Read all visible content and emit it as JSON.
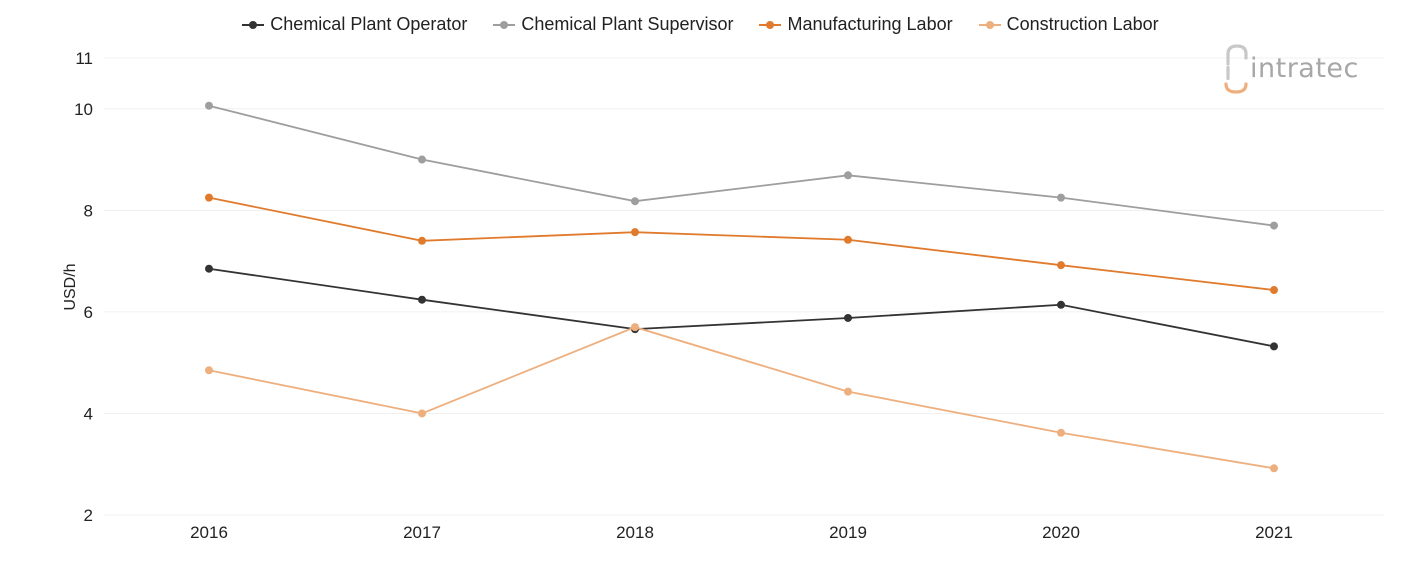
{
  "legend": [
    {
      "name": "Chemical Plant Operator",
      "color": "#333333"
    },
    {
      "name": "Chemical Plant Supervisor",
      "color": "#9e9e9e"
    },
    {
      "name": "Manufacturing Labor",
      "color": "#e07b2e"
    },
    {
      "name": "Construction Labor",
      "color": "#eeaf7f"
    }
  ],
  "logo": {
    "text": "intratec"
  },
  "chart_data": {
    "type": "line",
    "x": [
      "2016",
      "2017",
      "2018",
      "2019",
      "2020",
      "2021"
    ],
    "ylabel": "USD/h",
    "ylim": [
      2,
      11
    ],
    "yticks": [
      2,
      4,
      6,
      8,
      10,
      11
    ],
    "grid": true,
    "legend_position": "top-center",
    "series": [
      {
        "name": "Chemical Plant Operator",
        "color": "#333333",
        "values": [
          6.85,
          6.24,
          5.66,
          5.88,
          6.14,
          5.32
        ]
      },
      {
        "name": "Chemical Plant Supervisor",
        "color": "#9e9e9e",
        "values": [
          10.06,
          9.0,
          8.18,
          8.69,
          8.25,
          7.7
        ]
      },
      {
        "name": "Manufacturing Labor",
        "color": "#e07b2e",
        "values": [
          8.25,
          7.4,
          7.57,
          7.42,
          6.92,
          6.43
        ]
      },
      {
        "name": "Construction Labor",
        "color": "#eeaf7f",
        "values": [
          4.85,
          4.0,
          5.7,
          4.43,
          3.62,
          2.92
        ]
      }
    ]
  }
}
